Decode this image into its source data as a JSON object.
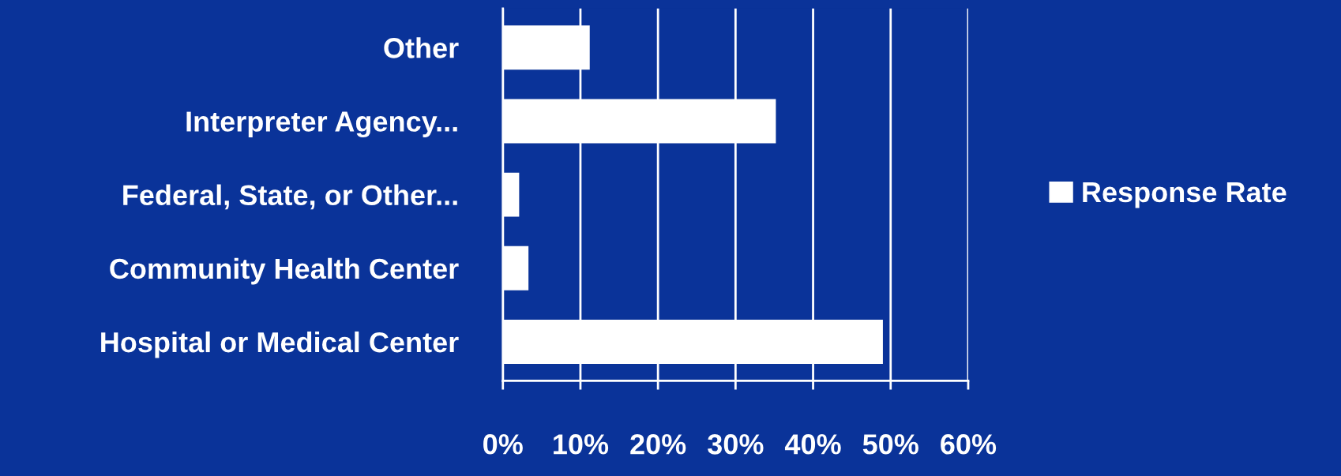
{
  "chart_data": {
    "type": "bar",
    "orientation": "horizontal",
    "categories": [
      "Other",
      "Interpreter Agency...",
      "Federal, State, or Other...",
      "Community Health Center",
      "Hospital or Medical Center"
    ],
    "series": [
      {
        "name": "Response Rate",
        "color": "#ffffff",
        "values": [
          11.2,
          35.2,
          2.1,
          3.3,
          49
        ]
      }
    ],
    "xlim": [
      0,
      60
    ],
    "xticks": [
      {
        "value": 0,
        "label": "0%"
      },
      {
        "value": 10,
        "label": "10%"
      },
      {
        "value": 20,
        "label": "20%"
      },
      {
        "value": 30,
        "label": "30%"
      },
      {
        "value": 40,
        "label": "40%"
      },
      {
        "value": 50,
        "label": "50%"
      },
      {
        "value": 60,
        "label": "60%"
      }
    ],
    "grid": "x",
    "legend": "right"
  }
}
